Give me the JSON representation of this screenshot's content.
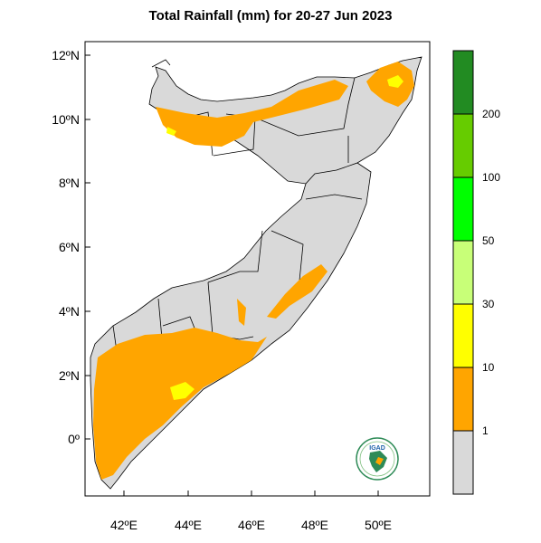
{
  "title": "Total Rainfall (mm) for 20-27 Jun 2023",
  "axes": {
    "lat_ticks": [
      "12ºN",
      "10ºN",
      "8ºN",
      "6ºN",
      "4ºN",
      "2ºN",
      "0º"
    ],
    "lon_ticks": [
      "42ºE",
      "44ºE",
      "46ºE",
      "48ºE",
      "50ºE"
    ]
  },
  "legend": {
    "bins": [
      {
        "color": "#d9d9d9",
        "label": "1"
      },
      {
        "color": "#ffa500",
        "label": "10"
      },
      {
        "color": "#ffff00",
        "label": "30"
      },
      {
        "color": "#c8ff78",
        "label": "50"
      },
      {
        "color": "#00ff00",
        "label": "100"
      },
      {
        "color": "#66cc00",
        "label": "200"
      },
      {
        "color": "#228b22",
        "label": ""
      }
    ]
  },
  "colors": {
    "land": "#d9d9d9",
    "rain_1_10": "#ffa500",
    "rain_10_30": "#ffff00"
  },
  "logo": {
    "text": "IGAD"
  }
}
